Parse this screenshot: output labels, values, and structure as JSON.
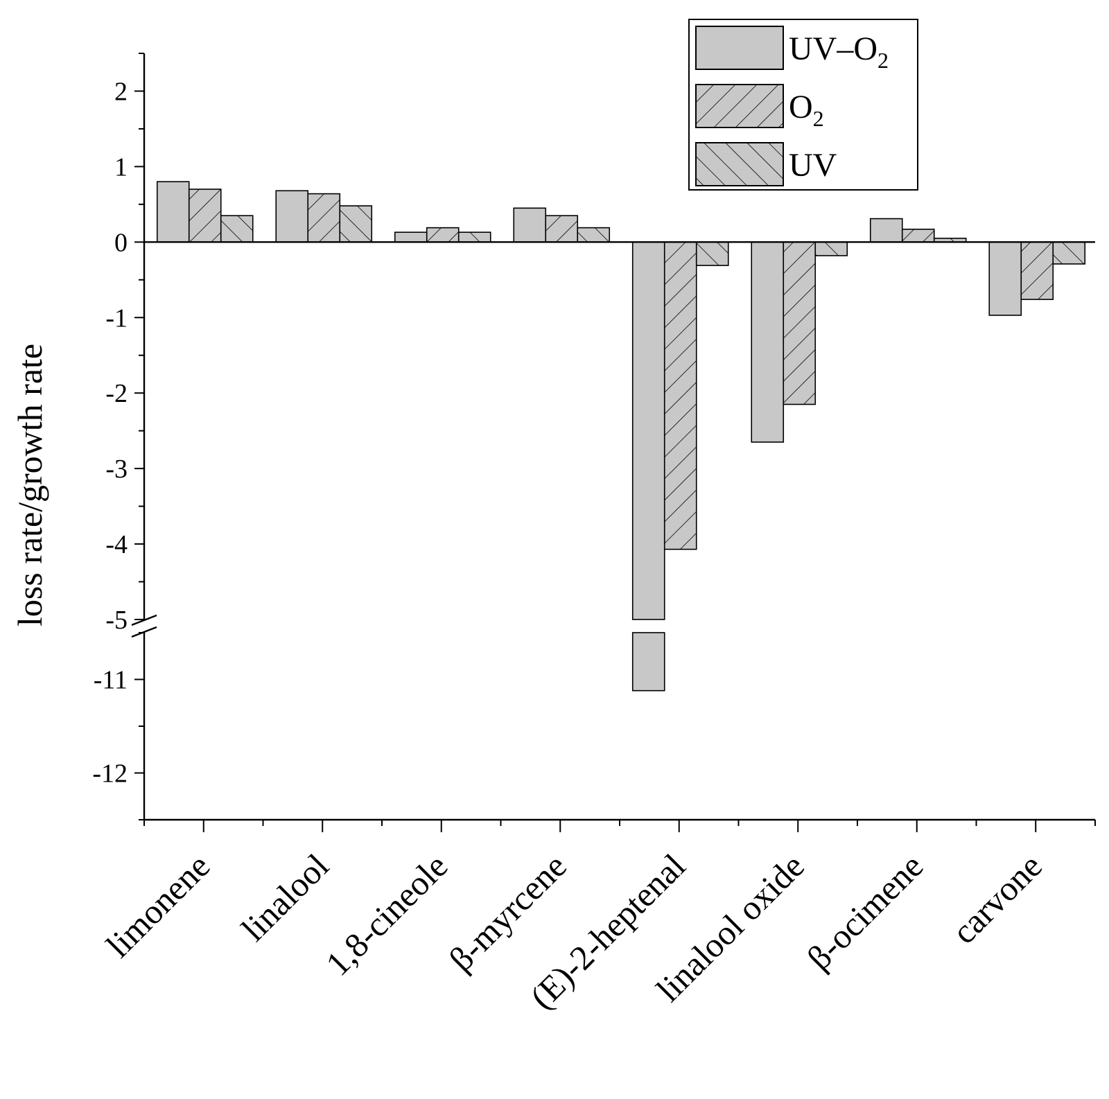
{
  "chart_data": {
    "type": "bar",
    "title": "",
    "xlabel": "",
    "ylabel": "loss rate/growth rate",
    "ylim_upper": [
      -5,
      2.5
    ],
    "ylim_lower": [
      -12.5,
      -10.5
    ],
    "axis_break": -5,
    "upper_ticks": [
      "2",
      "1",
      "0",
      "-1",
      "-2",
      "-3",
      "-4",
      "-5"
    ],
    "lower_ticks": [
      "-11",
      "-12"
    ],
    "categories": [
      "limonene",
      "linalool",
      "1,8-cineole",
      "β-myrcene",
      "(E)-2-heptenal",
      "linalool oxide",
      "β-ocimene",
      "carvone"
    ],
    "series": [
      {
        "name": "UV–O2",
        "pattern": "solid",
        "values": [
          0.8,
          0.68,
          0.13,
          0.45,
          -11.12,
          -2.65,
          0.31,
          -0.97
        ]
      },
      {
        "name": "O2",
        "pattern": "forward-hatch",
        "values": [
          0.7,
          0.64,
          0.19,
          0.35,
          -4.07,
          -2.15,
          0.17,
          -0.76
        ]
      },
      {
        "name": "UV",
        "pattern": "back-hatch",
        "values": [
          0.35,
          0.48,
          0.13,
          0.19,
          -0.31,
          -0.18,
          0.05,
          -0.29
        ]
      }
    ],
    "legend": {
      "position": "top-right",
      "entries": [
        {
          "main": "UV–O",
          "sub": "2"
        },
        {
          "main": "O",
          "sub": "2"
        },
        {
          "main": "UV",
          "sub": ""
        }
      ]
    },
    "colors": {
      "bar_fill": "#c8c8c8",
      "stroke": "#000000"
    }
  }
}
